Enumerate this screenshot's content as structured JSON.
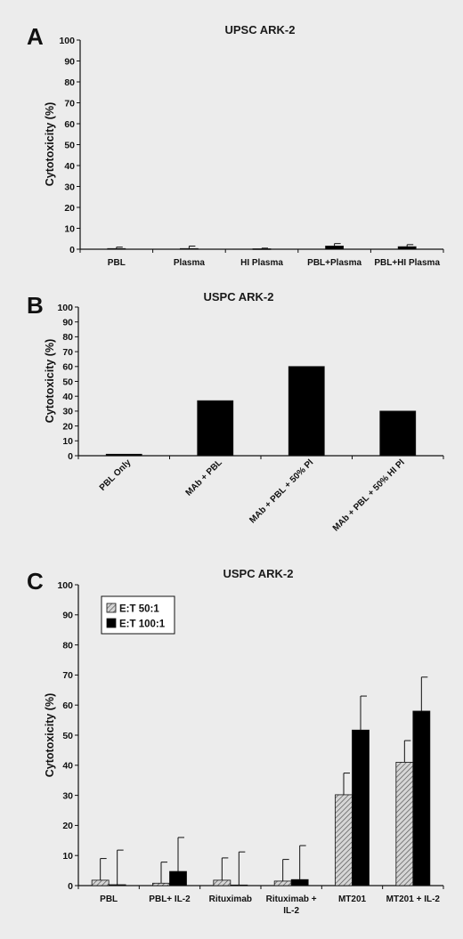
{
  "chart_data": [
    {
      "panel": "A",
      "type": "bar",
      "title": "UPSC ARK-2",
      "ylabel": "Cytotoxicity (%)",
      "ylim": [
        0,
        100
      ],
      "yticks": [
        0,
        10,
        20,
        30,
        40,
        50,
        60,
        70,
        80,
        90,
        100
      ],
      "categories": [
        "PBL",
        "Plasma",
        "HI Plasma",
        "PBL+Plasma",
        "PBL+HI Plasma"
      ],
      "series": [
        {
          "values": [
            0.3,
            0.3,
            0.2,
            1.5,
            1.2
          ],
          "errors": [
            0.7,
            1.2,
            0.3,
            1.2,
            1.0
          ],
          "color": "#000000",
          "pattern": "solid"
        }
      ]
    },
    {
      "panel": "B",
      "type": "bar",
      "title": "USPC ARK-2",
      "ylabel": "Cytotoxicity (%)",
      "ylim": [
        0,
        100
      ],
      "yticks": [
        0,
        10,
        20,
        30,
        40,
        50,
        60,
        70,
        80,
        90,
        100
      ],
      "categories": [
        "PBL Only",
        "MAb + PBL",
        "MAb + PBL + 50% Pl",
        "MAb + PBL + 50% HI Pl"
      ],
      "label_rotation": -45,
      "series": [
        {
          "values": [
            1,
            37,
            60,
            30
          ],
          "color": "#000000",
          "pattern": "solid"
        }
      ]
    },
    {
      "panel": "C",
      "type": "bar",
      "title": "USPC ARK-2",
      "ylabel": "Cytotoxicity (%)",
      "ylim": [
        0,
        100
      ],
      "yticks": [
        0,
        10,
        20,
        30,
        40,
        50,
        60,
        70,
        80,
        90,
        100
      ],
      "categories": [
        "PBL",
        "PBL+ IL-2",
        "Rituximab",
        "Rituximab + IL-2",
        "MT201",
        "MT201 + IL-2"
      ],
      "legend": "top-left",
      "series": [
        {
          "name": "E:T 50:1",
          "values": [
            1.8,
            0.8,
            1.8,
            1.5,
            30.2,
            41
          ],
          "errors": [
            7.2,
            7,
            7.4,
            7.2,
            7.2,
            7.2
          ],
          "color": "#bdbdbd",
          "pattern": "hatched"
        },
        {
          "name": "E:T 100:1",
          "values": [
            0.3,
            4.7,
            0.2,
            2,
            51.7,
            58
          ],
          "errors": [
            11.5,
            11.3,
            11,
            11.3,
            11.3,
            11.3
          ],
          "color": "#000000",
          "pattern": "solid"
        }
      ]
    }
  ]
}
